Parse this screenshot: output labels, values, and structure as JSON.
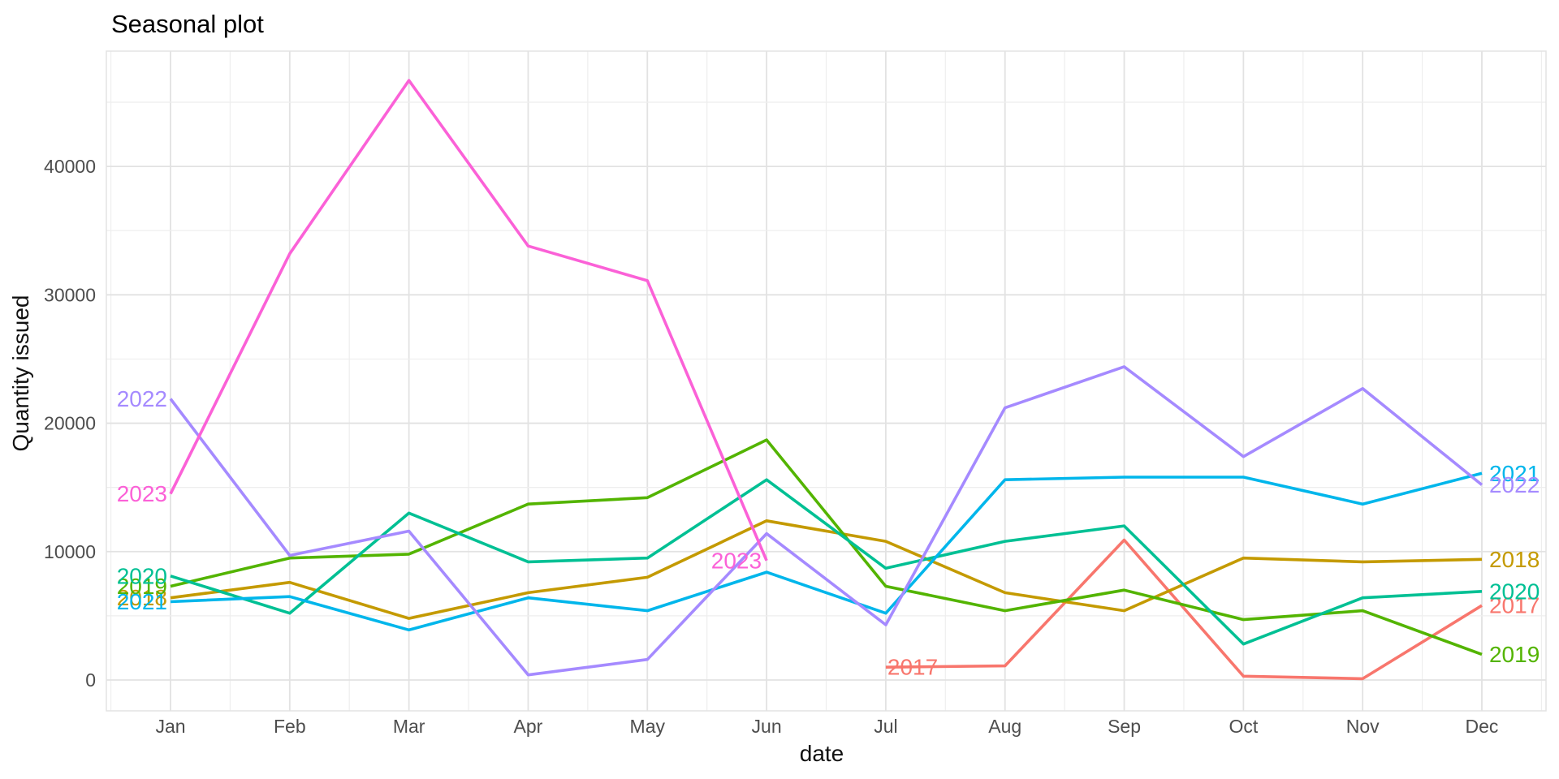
{
  "page": {
    "background": "#ffffff",
    "panel_background": "#ffffff",
    "grid_major_color": "#E2E2E2",
    "grid_minor_color": "#EEEEEE",
    "panel_border_color": "#E3E3E3",
    "tick_text_color": "#4D4D4D"
  },
  "chart_data": {
    "type": "line",
    "title": "Seasonal plot",
    "xlabel": "date",
    "ylabel": "Quantity issued",
    "x_ticks": [
      "Jan",
      "Feb",
      "Mar",
      "Apr",
      "May",
      "Jun",
      "Jul",
      "Aug",
      "Sep",
      "Oct",
      "Nov",
      "Dec"
    ],
    "y_ticks": [
      0,
      10000,
      20000,
      30000,
      40000
    ],
    "y_minor_ticks": [
      5000,
      15000,
      25000,
      35000,
      45000
    ],
    "ylim": [
      -2400,
      49000
    ],
    "grid": "major+minor",
    "legend": "direct labels at both line ends, colored per series",
    "series": [
      {
        "name": "2017",
        "color": "#F8766D",
        "start_month": 7,
        "values": [
          1000,
          1100,
          10900,
          300,
          100,
          5800
        ],
        "start_label": {
          "anchor": "start",
          "dx": 2
        },
        "end_label": {
          "anchor": "start",
          "dx": 9
        }
      },
      {
        "name": "2018",
        "color": "#C49A00",
        "start_month": 1,
        "values": [
          6400,
          7600,
          4800,
          6800,
          8000,
          12400,
          10800,
          6800,
          5400,
          9500,
          9200,
          9400
        ],
        "start_label": {
          "anchor": "end",
          "dx": -4
        },
        "end_label": {
          "anchor": "start",
          "dx": 9
        }
      },
      {
        "name": "2019",
        "color": "#53B400",
        "start_month": 1,
        "values": [
          7300,
          9500,
          9800,
          13700,
          14200,
          18700,
          7300,
          5400,
          7000,
          4700,
          5400,
          2000
        ],
        "start_label": {
          "anchor": "end",
          "dx": -4
        },
        "end_label": {
          "anchor": "start",
          "dx": 9
        }
      },
      {
        "name": "2020",
        "color": "#00C094",
        "start_month": 1,
        "values": [
          8100,
          5200,
          13000,
          9200,
          9500,
          15600,
          8700,
          10800,
          12000,
          2800,
          6400,
          6900
        ],
        "start_label": {
          "anchor": "end",
          "dx": -4
        },
        "end_label": {
          "anchor": "start",
          "dx": 9
        }
      },
      {
        "name": "2021",
        "color": "#00B6EB",
        "start_month": 1,
        "values": [
          6100,
          6500,
          3900,
          6400,
          5400,
          8400,
          5200,
          15600,
          15800,
          15800,
          13700,
          16100
        ],
        "start_label": {
          "anchor": "end",
          "dx": -4
        },
        "end_label": {
          "anchor": "start",
          "dx": 9
        }
      },
      {
        "name": "2022",
        "color": "#A58AFF",
        "start_month": 1,
        "values": [
          21900,
          9700,
          11600,
          400,
          1600,
          11400,
          4300,
          21200,
          24400,
          17400,
          22700,
          15200
        ],
        "start_label": {
          "anchor": "end",
          "dx": -4
        },
        "end_label": {
          "anchor": "start",
          "dx": 9
        }
      },
      {
        "name": "2023",
        "color": "#FB61D7",
        "start_month": 1,
        "values": [
          14500,
          33200,
          46700,
          33800,
          31100,
          9300
        ],
        "start_label": {
          "anchor": "end",
          "dx": -4
        },
        "end_label": {
          "anchor": "end",
          "dx": -6
        }
      }
    ]
  }
}
